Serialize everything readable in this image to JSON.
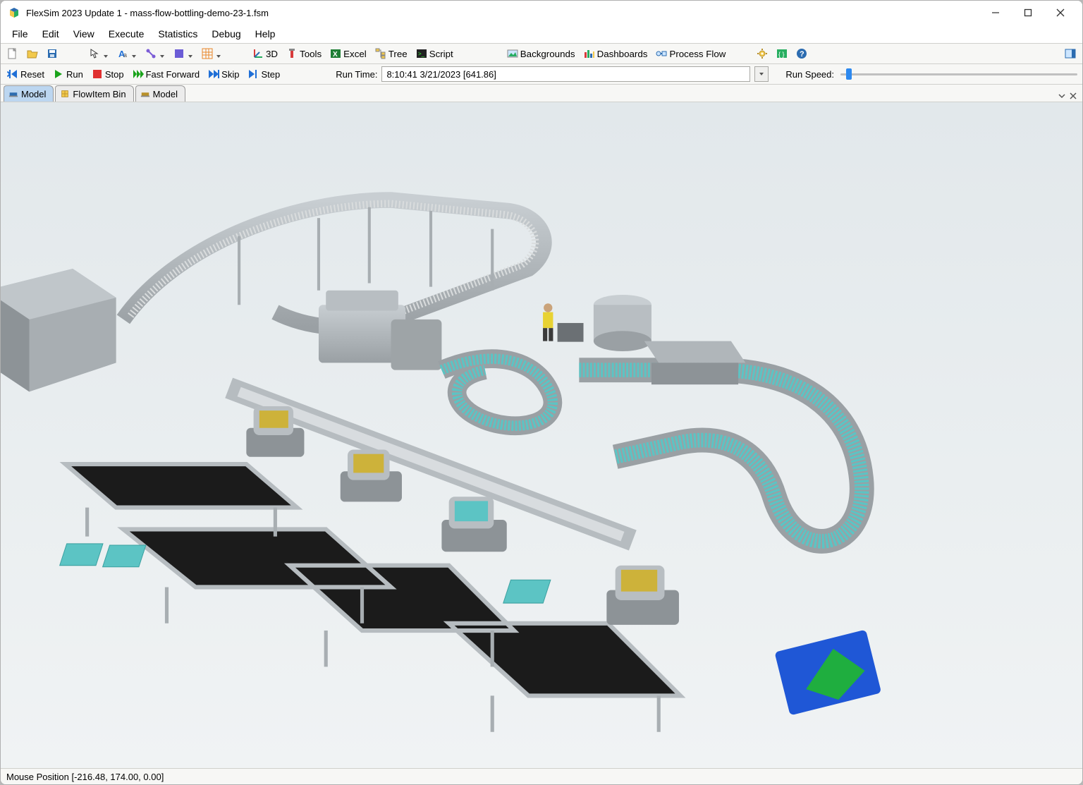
{
  "window": {
    "title": "FlexSim 2023 Update 1 - mass-flow-bottling-demo-23-1.fsm"
  },
  "menubar": {
    "items": [
      "File",
      "Edit",
      "View",
      "Execute",
      "Statistics",
      "Debug",
      "Help"
    ]
  },
  "toolbar1": {
    "buttons_left": [
      {
        "name": "new-file-button",
        "icon": "new"
      },
      {
        "name": "open-file-button",
        "icon": "open"
      },
      {
        "name": "save-file-button",
        "icon": "save"
      }
    ],
    "buttons_mid": [
      {
        "name": "arrow-tool-button",
        "icon": "arrow",
        "dd": true
      },
      {
        "name": "text-tool-button",
        "icon": "atext",
        "dd": true
      },
      {
        "name": "connect-tool-button",
        "icon": "connect",
        "dd": true
      },
      {
        "name": "color-tool-button",
        "icon": "color",
        "dd": true
      },
      {
        "name": "grid-tool-button",
        "icon": "grid",
        "dd": true
      }
    ],
    "buttons_right": [
      {
        "name": "3d-button",
        "icon": "axes",
        "label": "3D"
      },
      {
        "name": "tools-button",
        "icon": "tools",
        "label": "Tools"
      },
      {
        "name": "excel-button",
        "icon": "excel",
        "label": "Excel"
      },
      {
        "name": "tree-button",
        "icon": "tree",
        "label": "Tree"
      },
      {
        "name": "script-button",
        "icon": "script",
        "label": "Script"
      }
    ],
    "buttons_far": [
      {
        "name": "backgrounds-button",
        "icon": "bg",
        "label": "Backgrounds"
      },
      {
        "name": "dashboards-button",
        "icon": "dash",
        "label": "Dashboards"
      },
      {
        "name": "process-flow-button",
        "icon": "pflow",
        "label": "Process Flow"
      }
    ],
    "buttons_end": [
      {
        "name": "settings-button",
        "icon": "gear"
      },
      {
        "name": "code-button",
        "icon": "code"
      },
      {
        "name": "help-button",
        "icon": "help"
      }
    ],
    "panel_btn": {
      "name": "panel-button",
      "icon": "panel"
    }
  },
  "simbar": {
    "reset": {
      "label": "Reset"
    },
    "run": {
      "label": "Run"
    },
    "stop": {
      "label": "Stop"
    },
    "ff": {
      "label": "Fast Forward"
    },
    "skip": {
      "label": "Skip"
    },
    "step": {
      "label": "Step"
    },
    "runtime_label": "Run Time:",
    "runtime_value": "8:10:41  3/21/2023   [641.86]",
    "runspeed_label": "Run Speed:",
    "speed_position_pct": 3
  },
  "tabs": {
    "items": [
      {
        "name": "tab-model-1",
        "label": "Model",
        "icon": "modelblue",
        "active": true
      },
      {
        "name": "tab-flowitem-bin",
        "label": "FlowItem Bin",
        "icon": "flowitem",
        "active": false
      },
      {
        "name": "tab-model-2",
        "label": "Model",
        "icon": "modelbrown",
        "active": false
      }
    ]
  },
  "statusbar": {
    "text": "Mouse Position [-216.48, 174.00, 0.00]"
  },
  "scene": {
    "type": "3d-simulation",
    "description": "Bottling plant with elevated conveyor loop carrying bottles (top), serpentine teal-bottle conveyor curving to right, four robotic packing stations feeding black belt conveyors at bottom-left, one yellow-shirt operator at a workstation, cylindrical tank.",
    "colors": {
      "floor": "#e8edef",
      "conveyor_metal": "#b6bcc0",
      "conveyor_belt_black": "#1b1b1b",
      "bottle_teal": "#5cc4c4",
      "machine_gray": "#9ea4a7",
      "machine_dark": "#595e61",
      "pallet_yellow": "#cdb23a",
      "operator_shirt": "#e8d233",
      "blue_panel": "#1f57d6",
      "green_panel": "#1fae3f"
    }
  }
}
